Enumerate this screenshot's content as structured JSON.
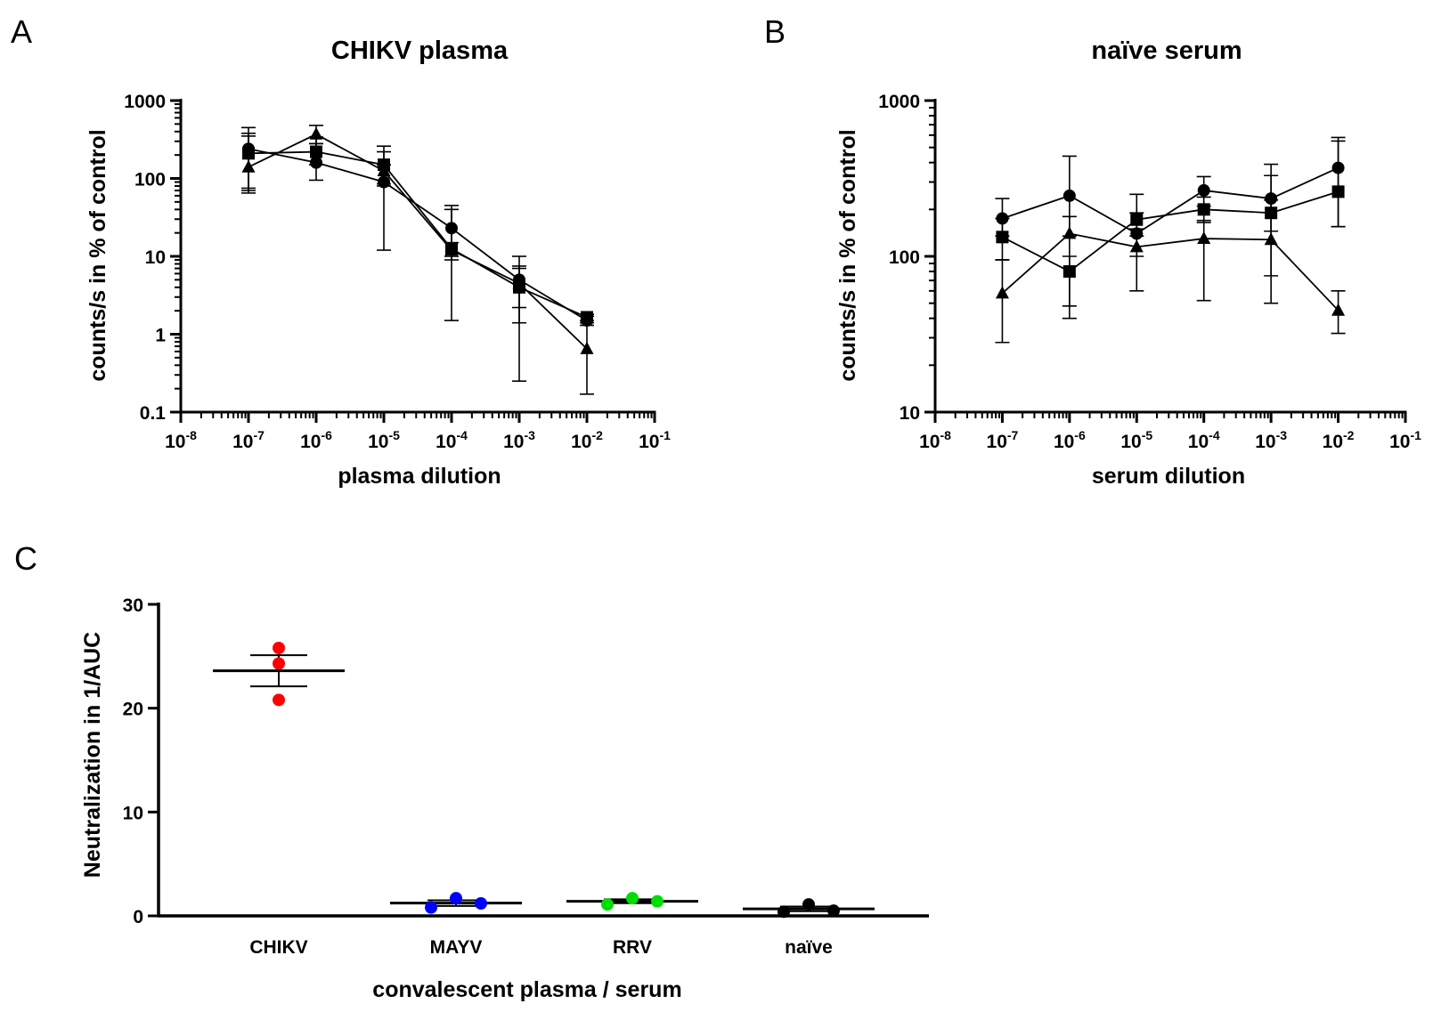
{
  "panels": {
    "A": {
      "letter": "A",
      "chart_data": {
        "type": "line",
        "title": "CHIKV plasma",
        "xlabel": "plasma dilution",
        "ylabel": "counts/s in % of control",
        "xscale": "log10",
        "yscale": "log10",
        "x_tick_exponents": [
          -8,
          -7,
          -6,
          -5,
          -4,
          -3,
          -2,
          -1
        ],
        "x_tick_base": "10",
        "y_tick_values": [
          0.1,
          1,
          10,
          100,
          1000
        ],
        "y_tick_labels": [
          "0.1",
          "1",
          "10",
          "100",
          "1000"
        ],
        "ylim": [
          0.1,
          1000
        ],
        "x_exponents": [
          -7,
          -6,
          -5,
          -4,
          -3,
          -2
        ],
        "series": [
          {
            "name": "circle",
            "marker": "circle",
            "values": [
              240,
              160,
              90,
              23,
              5,
              1.5
            ],
            "err_low": [
              70,
              95,
              12,
              9,
              1.4,
              1.3
            ],
            "err_high": [
              450,
              340,
              150,
              45,
              10,
              1.7
            ]
          },
          {
            "name": "square",
            "marker": "square",
            "values": [
              210,
              220,
              150,
              12.5,
              4,
              1.65
            ],
            "err_low": [
              65,
              150,
              85,
              1.5,
              0.25,
              1.5
            ],
            "err_high": [
              380,
              280,
              260,
              40,
              7,
              1.8
            ]
          },
          {
            "name": "triangle",
            "marker": "triangle",
            "values": [
              140,
              370,
              125,
              12,
              4.5,
              0.65
            ],
            "err_low": [
              75,
              280,
              80,
              10,
              2.2,
              0.17
            ],
            "err_high": [
              350,
              480,
              220,
              15,
              7.5,
              1.4
            ]
          }
        ]
      }
    },
    "B": {
      "letter": "B",
      "chart_data": {
        "type": "line",
        "title": "naïve serum",
        "xlabel": "serum dilution",
        "ylabel": "counts/s in % of control",
        "xscale": "log10",
        "yscale": "log10",
        "x_tick_exponents": [
          -8,
          -7,
          -6,
          -5,
          -4,
          -3,
          -2,
          -1
        ],
        "x_tick_base": "10",
        "y_tick_values": [
          10,
          100,
          1000
        ],
        "y_tick_labels": [
          "10",
          "100",
          "1000"
        ],
        "ylim": [
          10,
          1000
        ],
        "x_exponents": [
          -7,
          -6,
          -5,
          -4,
          -3,
          -2
        ],
        "series": [
          {
            "name": "circle",
            "marker": "circle",
            "values": [
              175,
              245,
              140,
              265,
              235,
              370
            ],
            "err_low": [
              135,
              135,
              100,
              210,
              145,
              155
            ],
            "err_high": [
              235,
              440,
              190,
              325,
              330,
              580
            ]
          },
          {
            "name": "square",
            "marker": "square",
            "values": [
              133,
              80,
              172,
              200,
              190,
              260
            ],
            "err_low": [
              95,
              48,
              135,
              165,
              75,
              155
            ],
            "err_high": [
              175,
              100,
              250,
              240,
              390,
              550
            ]
          },
          {
            "name": "triangle",
            "marker": "triangle",
            "values": [
              58,
              140,
              115,
              130,
              128,
              45
            ],
            "err_low": [
              28,
              40,
              60,
              52,
              50,
              32
            ],
            "err_high": [
              95,
              180,
              150,
              170,
              230,
              60
            ]
          }
        ]
      }
    },
    "C": {
      "letter": "C",
      "chart_data": {
        "type": "scatter",
        "title": "",
        "xlabel": "convalescent plasma / serum",
        "ylabel": "Neutralization in 1/AUC",
        "ylim": [
          0,
          30
        ],
        "y_tick_values": [
          0,
          10,
          20,
          30
        ],
        "y_tick_labels": [
          "0",
          "10",
          "20",
          "30"
        ],
        "categories": [
          "CHIKV",
          "MAYV",
          "RRV",
          "naïve"
        ],
        "groups": [
          {
            "name": "CHIKV",
            "color": "#ff0000",
            "points": [
              25.8,
              24.3,
              20.8
            ],
            "mean": 23.6,
            "sem_low": 22.1,
            "sem_high": 25.1
          },
          {
            "name": "MAYV",
            "color": "#0000ff",
            "points": [
              0.8,
              1.7,
              1.2
            ],
            "mean": 1.23,
            "sem_low": 0.95,
            "sem_high": 1.5
          },
          {
            "name": "RRV",
            "color": "#00dd00",
            "points": [
              1.1,
              1.7,
              1.4
            ],
            "mean": 1.4,
            "sem_low": 1.22,
            "sem_high": 1.6
          },
          {
            "name": "naïve",
            "color": "#000000",
            "points": [
              0.4,
              1.1,
              0.5
            ],
            "mean": 0.67,
            "sem_low": 0.45,
            "sem_high": 0.9
          }
        ]
      }
    }
  }
}
